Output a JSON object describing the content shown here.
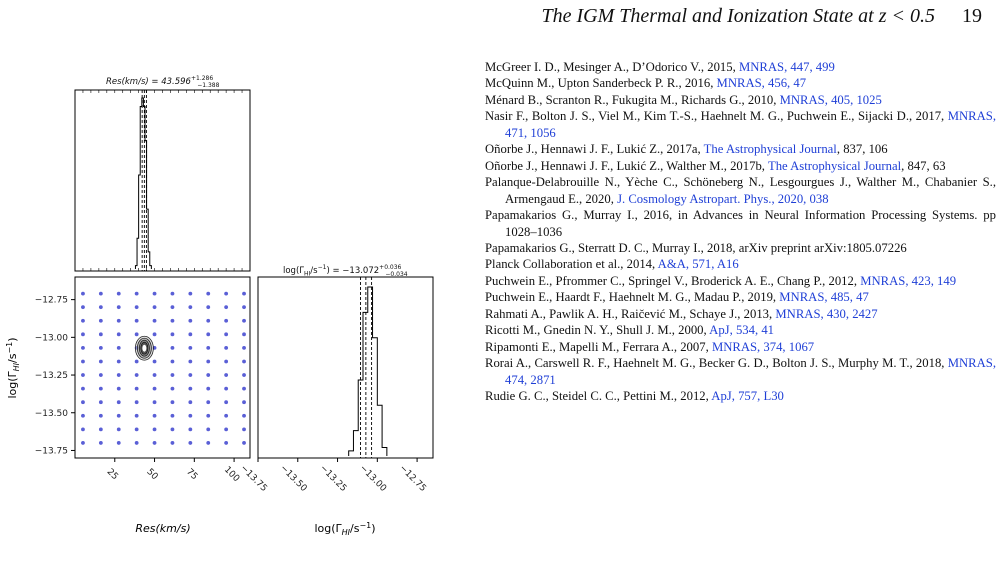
{
  "header": {
    "running_title": "The IGM Thermal and Ionization State at z < 0.5",
    "page_number": "19"
  },
  "figure": {
    "panel_titles": {
      "res": "Res(km/s) = 43.596",
      "res_upper": "+1.286",
      "res_lower": "−1.388",
      "gamma": "log(Γ",
      "gamma_sub": "HI",
      "gamma_tail": "/s",
      "gamma_value": ") = −13.072",
      "gamma_upper": "+0.036",
      "gamma_lower": "−0.034"
    },
    "xlabel_left": "Res(km/s)",
    "xlabel_right": "log(Γ_HI/s^-1)",
    "ylabel": "log(Γ_HI/s^-1)",
    "point_color": "#5a5fd6",
    "contour_color": "#333333"
  },
  "chart_data": [
    {
      "type": "histogram",
      "panel": "Res marginal",
      "title": "Res(km/s) = 43.596 +1.286 −1.388",
      "x_range": [
        0,
        110
      ],
      "bins": [
        38,
        39,
        40,
        41,
        42,
        43,
        44,
        45,
        46,
        47
      ],
      "counts": [
        0.02,
        0.18,
        0.55,
        0.95,
        1.0,
        0.95,
        0.75,
        0.35,
        0.1,
        0.02
      ],
      "quantiles": [
        42.208,
        43.596,
        44.882
      ]
    },
    {
      "type": "scatter",
      "panel": "joint",
      "xlabel": "Res(km/s)",
      "ylabel": "log(Γ_HI/s^-1)",
      "x_ticks": [
        25,
        50,
        75,
        100
      ],
      "y_ticks": [
        -12.75,
        -13.0,
        -13.25,
        -13.5,
        -13.75
      ],
      "x_range": [
        0,
        110
      ],
      "y_range": [
        -13.8,
        -12.6
      ],
      "grid_x": [
        5,
        16.25,
        27.5,
        38.75,
        50,
        61.25,
        72.5,
        83.75,
        95,
        106.25
      ],
      "grid_y": [
        -12.71,
        -12.8,
        -12.89,
        -12.98,
        -13.07,
        -13.16,
        -13.25,
        -13.34,
        -13.43,
        -13.52,
        -13.61,
        -13.7
      ],
      "contour_center": [
        43.6,
        -13.072
      ]
    },
    {
      "type": "histogram",
      "panel": "Gamma marginal",
      "title": "log(Γ_HI/s^-1) = −13.072 +0.036 −0.034",
      "x_range": [
        -13.75,
        -12.65
      ],
      "x_ticks": [
        -13.75,
        -13.5,
        -13.25,
        -13.0,
        -12.75
      ],
      "bins": [
        -13.18,
        -13.15,
        -13.12,
        -13.09,
        -13.06,
        -13.03,
        -13.0,
        -12.97
      ],
      "counts": [
        0.03,
        0.15,
        0.45,
        0.85,
        1.0,
        0.7,
        0.3,
        0.05
      ],
      "quantiles": [
        -13.106,
        -13.072,
        -13.036
      ]
    }
  ],
  "references": [
    {
      "pre": "McGreer I. D., Mesinger A., D’Odorico V., 2015, ",
      "link": "MNRAS, 447, 499",
      "post": ""
    },
    {
      "pre": "McQuinn M., Upton Sanderbeck P. R., 2016, ",
      "link": "MNRAS, 456, 47",
      "post": ""
    },
    {
      "pre": "Ménard B., Scranton R., Fukugita M., Richards G., 2010, ",
      "link": "MNRAS, 405, 1025",
      "post": ""
    },
    {
      "pre": "Nasir F., Bolton J. S., Viel M., Kim T.-S., Haehnelt M. G., Puchwein E., Sijacki D., 2017, ",
      "link": "MNRAS, 471, 1056",
      "post": ""
    },
    {
      "pre": "Oñorbe J., Hennawi J. F., Lukić Z., 2017a, ",
      "link": "The Astrophysical Journal",
      "post": ", 837, 106"
    },
    {
      "pre": "Oñorbe J., Hennawi J. F., Lukić Z., Walther M., 2017b, ",
      "link": "The Astrophysical Journal",
      "post": ", 847, 63"
    },
    {
      "pre": "Palanque-Delabrouille N., Yèche C., Schöneberg N., Lesgourgues J., Walther M., Chabanier S., Armengaud E., 2020, ",
      "link": "J. Cosmology Astropart. Phys., 2020, 038",
      "post": ""
    },
    {
      "pre": "Papamakarios G., Murray I., 2016, in Advances in Neural Information Processing Systems. pp 1028–1036",
      "link": "",
      "post": ""
    },
    {
      "pre": "Papamakarios G., Sterratt D. C., Murray I., 2018, arXiv preprint arXiv:1805.07226",
      "link": "",
      "post": ""
    },
    {
      "pre": "Planck Collaboration et al., 2014, ",
      "link": "A&A, 571, A16",
      "post": ""
    },
    {
      "pre": "Puchwein E., Pfrommer C., Springel V., Broderick A. E., Chang P., 2012, ",
      "link": "MNRAS, 423, 149",
      "post": ""
    },
    {
      "pre": "Puchwein E., Haardt F., Haehnelt M. G., Madau P., 2019, ",
      "link": "MNRAS, 485, 47",
      "post": ""
    },
    {
      "pre": "Rahmati A., Pawlik A. H., Raičević M., Schaye J., 2013, ",
      "link": "MNRAS, 430, 2427",
      "post": ""
    },
    {
      "pre": "Ricotti M., Gnedin N. Y., Shull J. M., 2000, ",
      "link": "ApJ, 534, 41",
      "post": ""
    },
    {
      "pre": "Ripamonti E., Mapelli M., Ferrara A., 2007, ",
      "link": "MNRAS, 374, 1067",
      "post": ""
    },
    {
      "pre": "Rorai A., Carswell R. F., Haehnelt M. G., Becker G. D., Bolton J. S., Murphy M. T., 2018, ",
      "link": "MNRAS, 474, 2871",
      "post": ""
    },
    {
      "pre": "Rudie G. C., Steidel C. C., Pettini M., 2012, ",
      "link": "ApJ, 757, L30",
      "post": ""
    }
  ]
}
